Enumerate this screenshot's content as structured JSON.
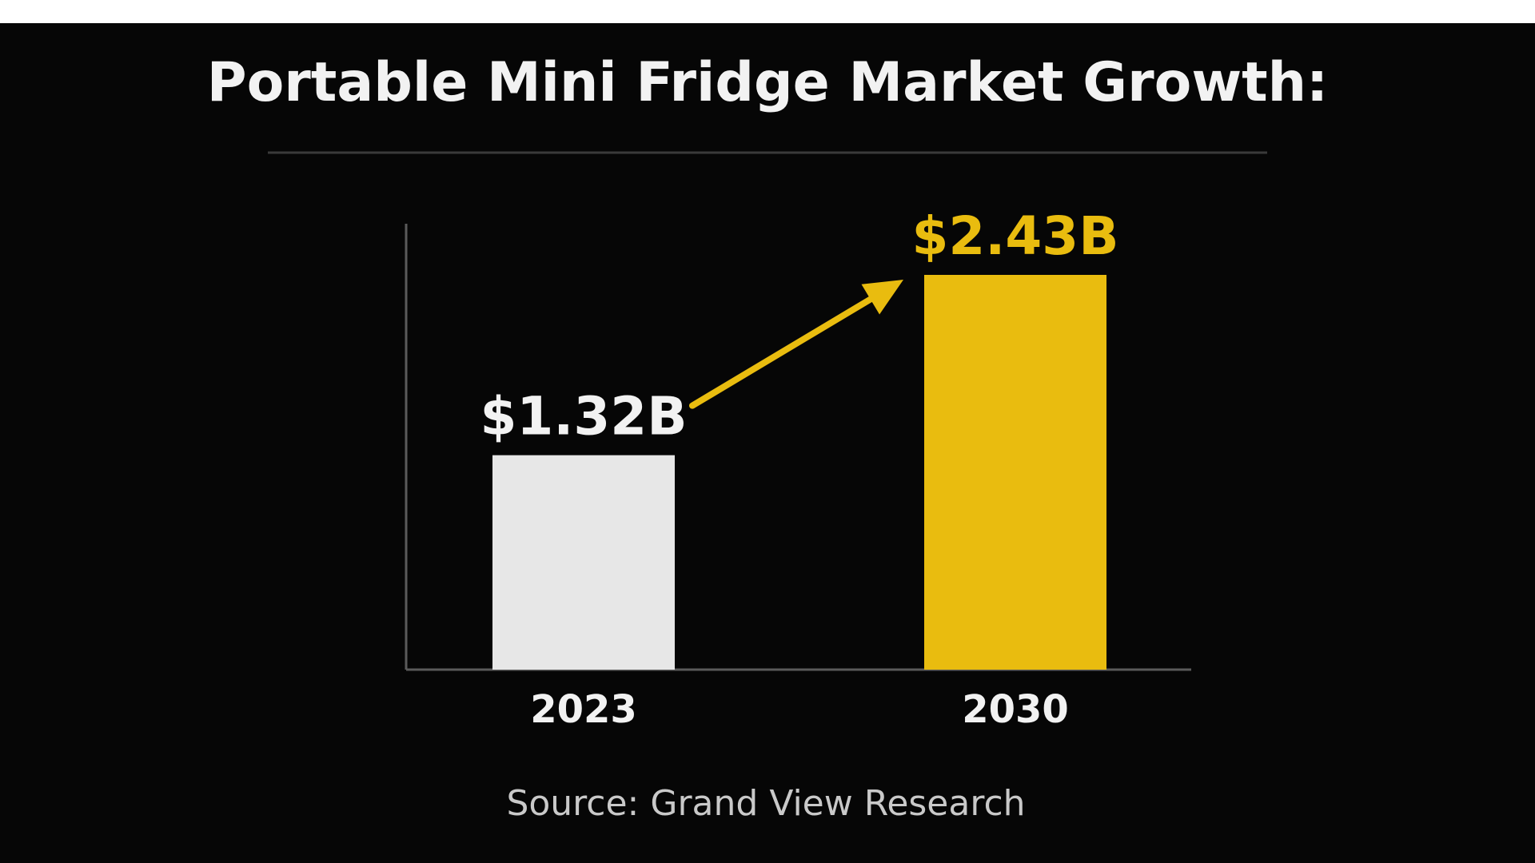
{
  "colors": {
    "background": "#060606",
    "text": "#f2f2f2",
    "source_text": "#c9c9c9",
    "rule": "#3a3a3a",
    "axis": "#5a5a5a",
    "accent": "#e9bc0f",
    "bar_2023": "#e7e7e7"
  },
  "chart_data": {
    "type": "bar",
    "title": "Portable Mini Fridge Market Growth:",
    "categories": [
      "2023",
      "2030"
    ],
    "values": [
      1.32,
      2.43
    ],
    "value_labels": [
      "$1.32B",
      "$2.43B"
    ],
    "unit": "USD billions",
    "ylim": [
      0,
      2.43
    ],
    "xlabel": "",
    "ylabel": "",
    "grid": false,
    "legend": "none",
    "annotation": "growth-arrow",
    "source": "Source: Grand View Research"
  }
}
